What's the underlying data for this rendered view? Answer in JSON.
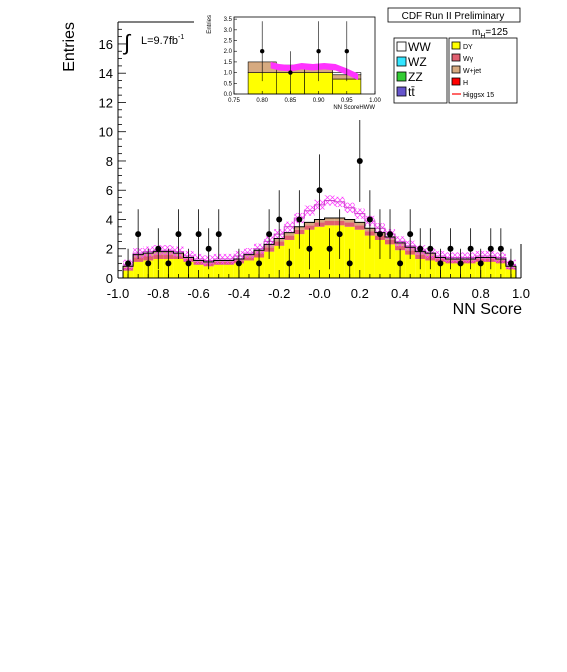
{
  "chart_data": {
    "type": "bar",
    "title": "CDF Run II Preliminary",
    "xlabel": "NN Score",
    "ylabel": "Entries",
    "xlim": [
      -1.0,
      1.0
    ],
    "ylim": [
      0,
      17.5
    ],
    "x_ticks": [
      "-1.0",
      "-0.8",
      "-0.6",
      "-0.4",
      "-0.2",
      "-0.0",
      "0.2",
      "0.4",
      "0.6",
      "0.8",
      "1.0"
    ],
    "y_ticks": [
      "0",
      "2",
      "4",
      "6",
      "8",
      "10",
      "12",
      "14",
      "16"
    ],
    "luminosity_label": "L=9.7fb",
    "luminosity_exp": "-1",
    "mass_label": "m",
    "mass_sub": "H",
    "mass_value": "=125",
    "legend": [
      {
        "label": "WW",
        "color": "#ffffff"
      },
      {
        "label": "WZ",
        "color": "#33e5ff"
      },
      {
        "label": "ZZ",
        "color": "#33cc33"
      },
      {
        "label": "tt̄",
        "color": "#6655cc"
      },
      {
        "label": "DY",
        "color": "#ffff00"
      },
      {
        "label": "Wγ",
        "color": "#e06070"
      },
      {
        "label": "W+jet",
        "color": "#d6aa80"
      },
      {
        "label": "H",
        "color": "#ff0000"
      },
      {
        "label": "Higgsx 15",
        "color": "#ff0000"
      }
    ],
    "bin_edges": [
      -0.975,
      -0.925,
      -0.875,
      -0.825,
      -0.775,
      -0.725,
      -0.675,
      -0.625,
      -0.575,
      -0.525,
      -0.475,
      -0.425,
      -0.375,
      -0.325,
      -0.275,
      -0.225,
      -0.175,
      -0.125,
      -0.075,
      -0.025,
      0.025,
      0.075,
      0.125,
      0.175,
      0.225,
      0.275,
      0.325,
      0.375,
      0.425,
      0.475,
      0.525,
      0.575,
      0.625,
      0.675,
      0.725,
      0.775,
      0.825,
      0.875,
      0.925,
      0.975
    ],
    "series": [
      {
        "name": "DY",
        "color": "#ffff00",
        "values": [
          0.5,
          1.1,
          1.2,
          1.3,
          1.3,
          1.3,
          1.1,
          0.9,
          0.8,
          0.9,
          0.9,
          1.0,
          1.2,
          1.4,
          1.8,
          2.2,
          2.6,
          3.0,
          3.3,
          3.5,
          3.6,
          3.6,
          3.5,
          3.3,
          2.9,
          2.6,
          2.3,
          1.9,
          1.6,
          1.3,
          1.2,
          1.1,
          1.0,
          1.0,
          1.0,
          1.1,
          1.1,
          1.0,
          0.6
        ]
      },
      {
        "name": "Wγ",
        "color": "#e06070",
        "values": [
          0.2,
          0.3,
          0.3,
          0.3,
          0.3,
          0.2,
          0.2,
          0.2,
          0.2,
          0.2,
          0.2,
          0.2,
          0.2,
          0.3,
          0.3,
          0.3,
          0.3,
          0.3,
          0.3,
          0.3,
          0.3,
          0.3,
          0.3,
          0.3,
          0.3,
          0.3,
          0.3,
          0.3,
          0.3,
          0.3,
          0.3,
          0.2,
          0.2,
          0.2,
          0.2,
          0.2,
          0.2,
          0.2,
          0.1
        ]
      },
      {
        "name": "W+jet",
        "color": "#d6aa80",
        "values": [
          0.1,
          0.2,
          0.2,
          0.2,
          0.2,
          0.2,
          0.1,
          0.1,
          0.1,
          0.1,
          0.1,
          0.1,
          0.2,
          0.2,
          0.2,
          0.2,
          0.2,
          0.2,
          0.2,
          0.2,
          0.2,
          0.2,
          0.2,
          0.2,
          0.2,
          0.2,
          0.2,
          0.2,
          0.2,
          0.2,
          0.2,
          0.1,
          0.1,
          0.1,
          0.1,
          0.1,
          0.1,
          0.1,
          0.1
        ]
      }
    ],
    "uncertainty_band": {
      "color": "#ff33ff",
      "values": [
        0.9,
        1.7,
        1.8,
        1.9,
        1.9,
        1.8,
        1.5,
        1.3,
        1.2,
        1.3,
        1.3,
        1.5,
        1.7,
        2.0,
        2.5,
        3.0,
        3.5,
        4.1,
        4.6,
        5.0,
        5.3,
        5.2,
        4.8,
        4.4,
        3.9,
        3.4,
        3.0,
        2.5,
        2.2,
        1.9,
        1.7,
        1.5,
        1.4,
        1.4,
        1.4,
        1.5,
        1.5,
        1.4,
        0.9
      ],
      "halfwidth": 0.35
    },
    "data_points": [
      {
        "x": -0.95,
        "y": 1,
        "err": 1.0
      },
      {
        "x": -0.9,
        "y": 3,
        "err": 1.7
      },
      {
        "x": -0.85,
        "y": 1,
        "err": 1.0
      },
      {
        "x": -0.8,
        "y": 2,
        "err": 1.4
      },
      {
        "x": -0.75,
        "y": 1,
        "err": 1.0
      },
      {
        "x": -0.7,
        "y": 3,
        "err": 1.7
      },
      {
        "x": -0.65,
        "y": 1,
        "err": 1.0
      },
      {
        "x": -0.6,
        "y": 3,
        "err": 1.7
      },
      {
        "x": -0.55,
        "y": 2,
        "err": 1.4
      },
      {
        "x": -0.5,
        "y": 3,
        "err": 1.7
      },
      {
        "x": -0.4,
        "y": 1,
        "err": 1.0
      },
      {
        "x": -0.3,
        "y": 1,
        "err": 1.0
      },
      {
        "x": -0.25,
        "y": 3,
        "err": 1.7
      },
      {
        "x": -0.2,
        "y": 4,
        "err": 2.0
      },
      {
        "x": -0.15,
        "y": 1,
        "err": 1.0
      },
      {
        "x": -0.1,
        "y": 4,
        "err": 2.0
      },
      {
        "x": -0.05,
        "y": 2,
        "err": 1.4
      },
      {
        "x": -0.0,
        "y": 6,
        "err": 2.45
      },
      {
        "x": 0.05,
        "y": 2,
        "err": 1.4
      },
      {
        "x": 0.1,
        "y": 3,
        "err": 1.7
      },
      {
        "x": 0.15,
        "y": 1,
        "err": 1.0
      },
      {
        "x": 0.2,
        "y": 8,
        "err": 2.8
      },
      {
        "x": 0.25,
        "y": 4,
        "err": 2.0
      },
      {
        "x": 0.3,
        "y": 3,
        "err": 1.7
      },
      {
        "x": 0.35,
        "y": 3,
        "err": 1.7
      },
      {
        "x": 0.4,
        "y": 1,
        "err": 1.0
      },
      {
        "x": 0.45,
        "y": 3,
        "err": 1.7
      },
      {
        "x": 0.5,
        "y": 2,
        "err": 1.4
      },
      {
        "x": 0.55,
        "y": 2,
        "err": 1.4
      },
      {
        "x": 0.6,
        "y": 1,
        "err": 1.0
      },
      {
        "x": 0.65,
        "y": 2,
        "err": 1.4
      },
      {
        "x": 0.7,
        "y": 1,
        "err": 1.0
      },
      {
        "x": 0.75,
        "y": 2,
        "err": 1.4
      },
      {
        "x": 0.8,
        "y": 1,
        "err": 1.0
      },
      {
        "x": 0.85,
        "y": 2,
        "err": 1.4
      },
      {
        "x": 0.9,
        "y": 2,
        "err": 1.4
      },
      {
        "x": 0.95,
        "y": 1,
        "err": 1.0
      }
    ],
    "inset": {
      "xlabel": "NN ScoreHWW",
      "ylabel": "Entries",
      "xlim": [
        0.75,
        1.0
      ],
      "ylim": [
        0,
        3.6
      ],
      "x_ticks": [
        "0.75",
        "0.80",
        "0.85",
        "0.90",
        "0.95",
        "1.00"
      ],
      "y_ticks": [
        "0.0",
        "0.5",
        "1.0",
        "1.5",
        "2.0",
        "2.5",
        "3.0",
        "3.5"
      ],
      "bin_edges": [
        0.775,
        0.825,
        0.875,
        0.925,
        0.975
      ],
      "stack": [
        {
          "name": "DY",
          "color": "#ffff00",
          "values": [
            1.0,
            1.0,
            1.0,
            0.7
          ]
        },
        {
          "name": "W+jet",
          "color": "#d6aa80",
          "values": [
            0.5,
            0.3,
            0.3,
            0.2
          ]
        },
        {
          "name": "WW",
          "color": "#ffffff",
          "values": [
            0.0,
            0.05,
            0.05,
            0.1
          ]
        }
      ],
      "band": {
        "color": "#ff33ff",
        "x": [
          0.815,
          0.83,
          0.85,
          0.87,
          0.89,
          0.91,
          0.93,
          0.95,
          0.97
        ],
        "center": [
          1.35,
          1.25,
          1.2,
          1.3,
          1.25,
          1.3,
          1.25,
          1.05,
          0.8
        ],
        "halfwidth": 0.15
      },
      "data_points": [
        {
          "x": 0.8,
          "y": 2,
          "err": 1.4
        },
        {
          "x": 0.85,
          "y": 1,
          "err": 1.0
        },
        {
          "x": 0.9,
          "y": 2,
          "err": 1.4
        },
        {
          "x": 0.95,
          "y": 2,
          "err": 1.4
        }
      ]
    }
  }
}
